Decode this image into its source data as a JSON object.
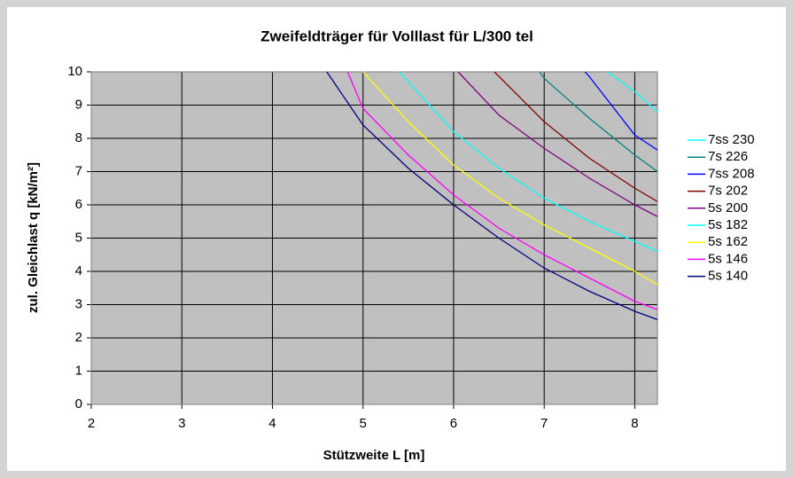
{
  "chart_data": {
    "type": "line",
    "title": "Zweifeldträger für Volllast für L/300 tel",
    "xlabel": "Stützweite L [m]",
    "ylabel": "zul. Gleichlast q [kN/m²]",
    "xlim": [
      2,
      8.25
    ],
    "ylim": [
      0,
      10
    ],
    "xticks": [
      2,
      3,
      4,
      5,
      6,
      7,
      8
    ],
    "yticks": [
      0,
      1,
      2,
      3,
      4,
      5,
      6,
      7,
      8,
      9,
      10
    ],
    "grid": true,
    "legend": "right",
    "series": [
      {
        "name": "7ss 230",
        "color": "#00ffff",
        "x": [
          7.7,
          8,
          8.25
        ],
        "values": [
          10,
          9.4,
          8.8
        ]
      },
      {
        "name": "7s 226",
        "color": "#008080",
        "x": [
          6.95,
          7,
          7.5,
          8,
          8.25
        ],
        "values": [
          10,
          9.8,
          8.6,
          7.5,
          7.0
        ]
      },
      {
        "name": "7ss 208",
        "color": "#0000ff",
        "x": [
          7.45,
          7.5,
          8,
          8.25
        ],
        "values": [
          10,
          9.85,
          8.1,
          7.65
        ]
      },
      {
        "name": "7s 202",
        "color": "#800000",
        "x": [
          6.45,
          7,
          7.5,
          8,
          8.25
        ],
        "values": [
          10,
          8.5,
          7.4,
          6.5,
          6.1
        ]
      },
      {
        "name": "5s 200",
        "color": "#800080",
        "x": [
          6.05,
          6.5,
          7,
          7.5,
          8,
          8.25
        ],
        "values": [
          10,
          8.7,
          7.7,
          6.8,
          6.0,
          5.65
        ]
      },
      {
        "name": "5s 182",
        "color": "#00ffff",
        "x": [
          5.4,
          5.5,
          6,
          6.5,
          7,
          7.5,
          8,
          8.25
        ],
        "values": [
          10,
          9.7,
          8.2,
          7.1,
          6.2,
          5.5,
          4.9,
          4.6
        ]
      },
      {
        "name": "5s 162",
        "color": "#ffff00",
        "x": [
          5.0,
          5.5,
          6,
          6.5,
          7,
          7.5,
          8,
          8.25
        ],
        "values": [
          10,
          8.5,
          7.2,
          6.2,
          5.4,
          4.7,
          4.0,
          3.6
        ]
      },
      {
        "name": "5s 146",
        "color": "#ff00ff",
        "x": [
          4.83,
          5,
          5.5,
          6,
          6.5,
          7,
          7.5,
          8,
          8.25
        ],
        "values": [
          10,
          8.9,
          7.5,
          6.3,
          5.3,
          4.5,
          3.8,
          3.1,
          2.85
        ]
      },
      {
        "name": "5s 140",
        "color": "#000080",
        "x": [
          4.6,
          5,
          5.5,
          6,
          6.5,
          7,
          7.5,
          8,
          8.25
        ],
        "values": [
          10,
          8.4,
          7.1,
          6.0,
          5.0,
          4.1,
          3.4,
          2.8,
          2.55
        ]
      }
    ]
  }
}
